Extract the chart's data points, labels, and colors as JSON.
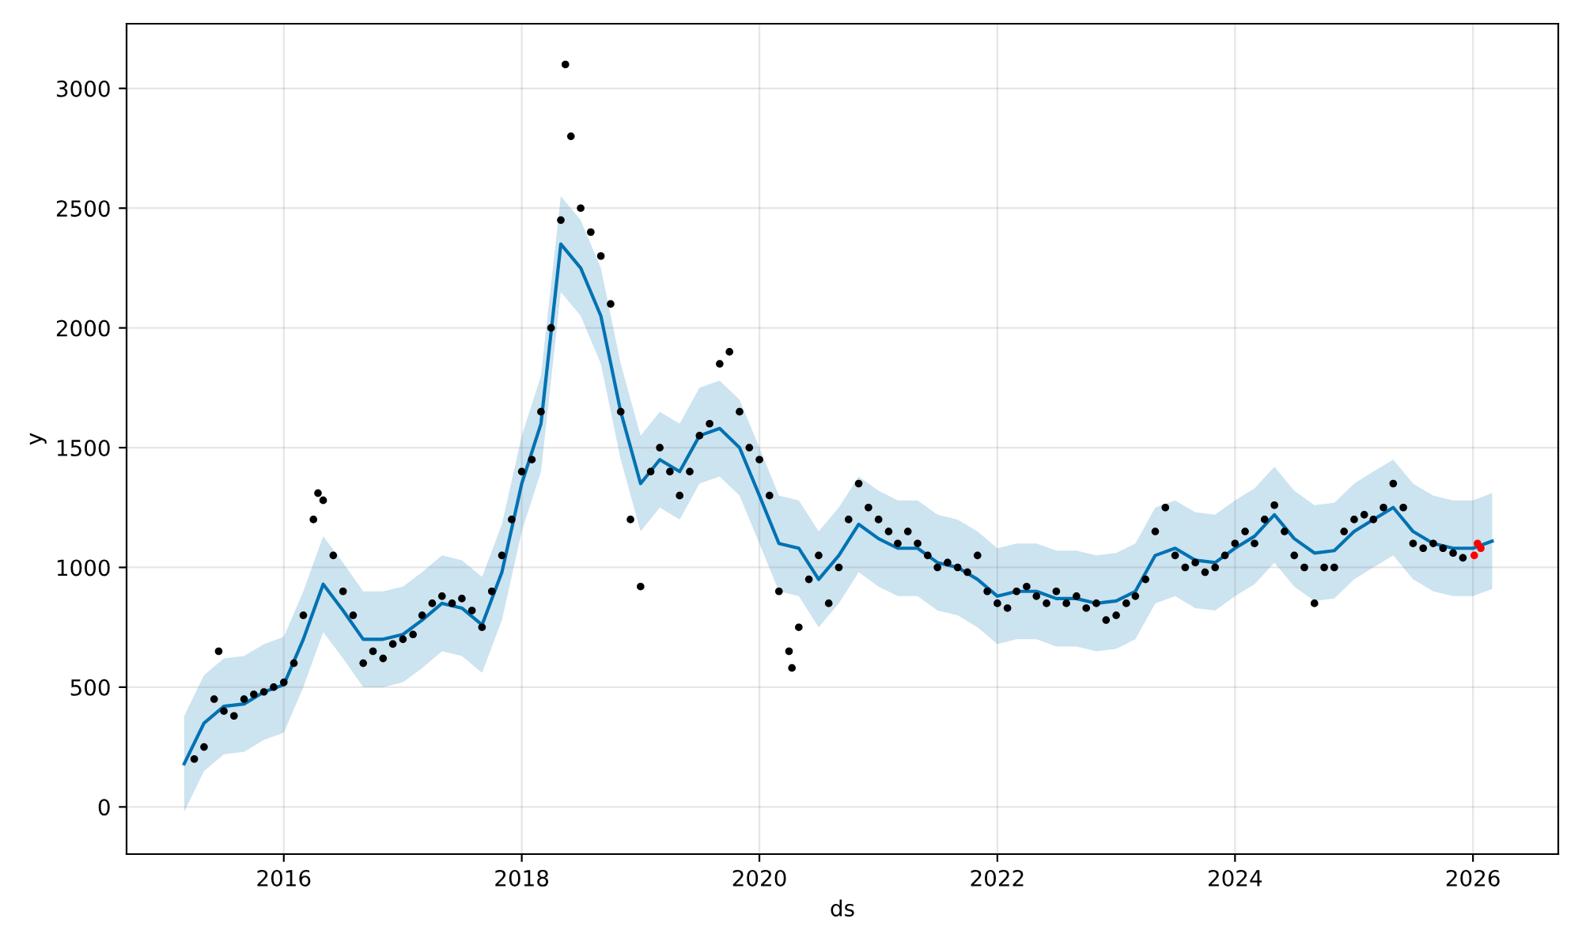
{
  "chart_data": {
    "type": "scatter",
    "xlabel": "ds",
    "ylabel": "y",
    "grid": true,
    "xlim": [
      "2014-09-05",
      "2026-09-20"
    ],
    "ylim": [
      -197,
      3270
    ],
    "xticks": [
      {
        "value": "2016-01-01",
        "label": "2016"
      },
      {
        "value": "2018-01-01",
        "label": "2018"
      },
      {
        "value": "2020-01-01",
        "label": "2020"
      },
      {
        "value": "2022-01-01",
        "label": "2022"
      },
      {
        "value": "2024-01-01",
        "label": "2024"
      },
      {
        "value": "2026-01-01",
        "label": "2026"
      }
    ],
    "yticks": [
      0,
      500,
      1000,
      1500,
      2000,
      2500,
      3000
    ],
    "series": [
      {
        "type": "line",
        "color": "#0072b2",
        "x": [
          "2015-03",
          "2015-05",
          "2015-07",
          "2015-09",
          "2015-11",
          "2016-01",
          "2016-03",
          "2016-05",
          "2016-07",
          "2016-09",
          "2016-11",
          "2017-01",
          "2017-03",
          "2017-05",
          "2017-07",
          "2017-09",
          "2017-11",
          "2018-01",
          "2018-03",
          "2018-05",
          "2018-07",
          "2018-09",
          "2018-11",
          "2019-01",
          "2019-03",
          "2019-05",
          "2019-07",
          "2019-09",
          "2019-11",
          "2020-01",
          "2020-03",
          "2020-05",
          "2020-07",
          "2020-09",
          "2020-11",
          "2021-01",
          "2021-03",
          "2021-05",
          "2021-07",
          "2021-09",
          "2021-11",
          "2022-01",
          "2022-03",
          "2022-05",
          "2022-07",
          "2022-09",
          "2022-11",
          "2023-01",
          "2023-03",
          "2023-05",
          "2023-07",
          "2023-09",
          "2023-11",
          "2024-01",
          "2024-03",
          "2024-05",
          "2024-07",
          "2024-09",
          "2024-11",
          "2025-01",
          "2025-03",
          "2025-05",
          "2025-07",
          "2025-09",
          "2025-11",
          "2026-01",
          "2026-03"
        ],
        "values": [
          180,
          350,
          420,
          430,
          480,
          510,
          700,
          930,
          820,
          700,
          700,
          720,
          780,
          850,
          830,
          760,
          980,
          1350,
          1600,
          2350,
          2250,
          2050,
          1650,
          1350,
          1450,
          1400,
          1550,
          1580,
          1500,
          1300,
          1100,
          1080,
          950,
          1050,
          1180,
          1120,
          1080,
          1080,
          1020,
          1000,
          950,
          880,
          900,
          900,
          870,
          870,
          850,
          860,
          900,
          1050,
          1080,
          1030,
          1020,
          1080,
          1130,
          1220,
          1120,
          1060,
          1070,
          1150,
          1200,
          1250,
          1150,
          1100,
          1080,
          1080,
          1110
        ],
        "lower": [
          -20,
          150,
          220,
          230,
          280,
          310,
          500,
          730,
          620,
          500,
          500,
          520,
          580,
          650,
          630,
          560,
          780,
          1150,
          1400,
          2150,
          2050,
          1850,
          1450,
          1150,
          1250,
          1200,
          1350,
          1380,
          1300,
          1100,
          900,
          880,
          750,
          850,
          980,
          920,
          880,
          880,
          820,
          800,
          750,
          680,
          700,
          700,
          670,
          670,
          650,
          660,
          700,
          850,
          880,
          830,
          820,
          880,
          930,
          1020,
          920,
          860,
          870,
          950,
          1000,
          1050,
          950,
          900,
          880,
          880,
          910
        ],
        "upper": [
          380,
          550,
          620,
          630,
          680,
          710,
          900,
          1130,
          1020,
          900,
          900,
          920,
          980,
          1050,
          1030,
          960,
          1180,
          1550,
          1800,
          2550,
          2450,
          2250,
          1850,
          1550,
          1650,
          1600,
          1750,
          1780,
          1700,
          1500,
          1300,
          1280,
          1150,
          1250,
          1380,
          1320,
          1280,
          1280,
          1220,
          1200,
          1150,
          1080,
          1100,
          1100,
          1070,
          1070,
          1050,
          1060,
          1100,
          1250,
          1280,
          1230,
          1220,
          1280,
          1330,
          1420,
          1320,
          1260,
          1270,
          1350,
          1400,
          1450,
          1350,
          1300,
          1280,
          1280,
          1310
        ]
      },
      {
        "color": "#000000",
        "marker": "circle",
        "x": [
          "2015-04",
          "2015-05",
          "2015-06",
          "2015-06-15",
          "2015-07",
          "2015-08",
          "2015-09",
          "2015-10",
          "2015-11",
          "2015-12",
          "2016-01",
          "2016-02",
          "2016-03",
          "2016-04",
          "2016-04-15",
          "2016-05",
          "2016-06",
          "2016-07",
          "2016-08",
          "2016-09",
          "2016-10",
          "2016-11",
          "2016-12",
          "2017-01",
          "2017-02",
          "2017-03",
          "2017-04",
          "2017-05",
          "2017-06",
          "2017-07",
          "2017-08",
          "2017-09",
          "2017-10",
          "2017-11",
          "2017-12",
          "2018-01",
          "2018-02",
          "2018-03",
          "2018-04",
          "2018-05",
          "2018-05-15",
          "2018-06",
          "2018-07",
          "2018-08",
          "2018-09",
          "2018-10",
          "2018-11",
          "2018-12",
          "2019-01",
          "2019-02",
          "2019-03",
          "2019-04",
          "2019-05",
          "2019-06",
          "2019-07",
          "2019-08",
          "2019-09",
          "2019-10",
          "2019-11",
          "2019-12",
          "2020-01",
          "2020-02",
          "2020-03",
          "2020-04",
          "2020-04-10",
          "2020-05",
          "2020-06",
          "2020-07",
          "2020-08",
          "2020-09",
          "2020-10",
          "2020-11",
          "2020-12",
          "2021-01",
          "2021-02",
          "2021-03",
          "2021-04",
          "2021-05",
          "2021-06",
          "2021-07",
          "2021-08",
          "2021-09",
          "2021-10",
          "2021-11",
          "2021-12",
          "2022-01",
          "2022-02",
          "2022-03",
          "2022-04",
          "2022-05",
          "2022-06",
          "2022-07",
          "2022-08",
          "2022-09",
          "2022-10",
          "2022-11",
          "2022-12",
          "2023-01",
          "2023-02",
          "2023-03",
          "2023-04",
          "2023-05",
          "2023-06",
          "2023-07",
          "2023-08",
          "2023-09",
          "2023-10",
          "2023-11",
          "2023-12",
          "2024-01",
          "2024-02",
          "2024-03",
          "2024-04",
          "2024-05",
          "2024-06",
          "2024-07",
          "2024-08",
          "2024-09",
          "2024-10",
          "2024-11",
          "2024-12",
          "2025-01",
          "2025-02",
          "2025-03",
          "2025-04",
          "2025-05",
          "2025-06",
          "2025-07",
          "2025-08",
          "2025-09",
          "2025-10",
          "2025-11",
          "2025-12"
        ],
        "values": [
          200,
          250,
          450,
          650,
          400,
          380,
          450,
          470,
          480,
          500,
          520,
          600,
          800,
          1200,
          1310,
          1280,
          1050,
          900,
          800,
          600,
          650,
          620,
          680,
          700,
          720,
          800,
          850,
          880,
          850,
          870,
          820,
          750,
          900,
          1050,
          1200,
          1400,
          1450,
          1650,
          2000,
          2450,
          3100,
          2800,
          2500,
          2400,
          2300,
          2100,
          1650,
          1200,
          920,
          1400,
          1500,
          1400,
          1300,
          1400,
          1550,
          1600,
          1850,
          1900,
          1650,
          1500,
          1450,
          1300,
          900,
          650,
          580,
          750,
          950,
          1050,
          850,
          1000,
          1200,
          1350,
          1250,
          1200,
          1150,
          1100,
          1150,
          1100,
          1050,
          1000,
          1020,
          1000,
          980,
          1050,
          900,
          850,
          830,
          900,
          920,
          880,
          850,
          900,
          850,
          880,
          830,
          850,
          780,
          800,
          850,
          880,
          950,
          1150,
          1250,
          1050,
          1000,
          1020,
          980,
          1000,
          1050,
          1100,
          1150,
          1100,
          1200,
          1260,
          1150,
          1050,
          1000,
          850,
          1000,
          1000,
          1150,
          1200,
          1220,
          1200,
          1250,
          1350,
          1250,
          1100,
          1080,
          1100,
          1080,
          1060,
          1040
        ]
      },
      {
        "type": "scatter",
        "color": "#ff0000",
        "marker": "circle",
        "x": [
          "2026-01-05",
          "2026-01-15",
          "2026-01-25"
        ],
        "values": [
          1050,
          1100,
          1080
        ]
      }
    ]
  }
}
